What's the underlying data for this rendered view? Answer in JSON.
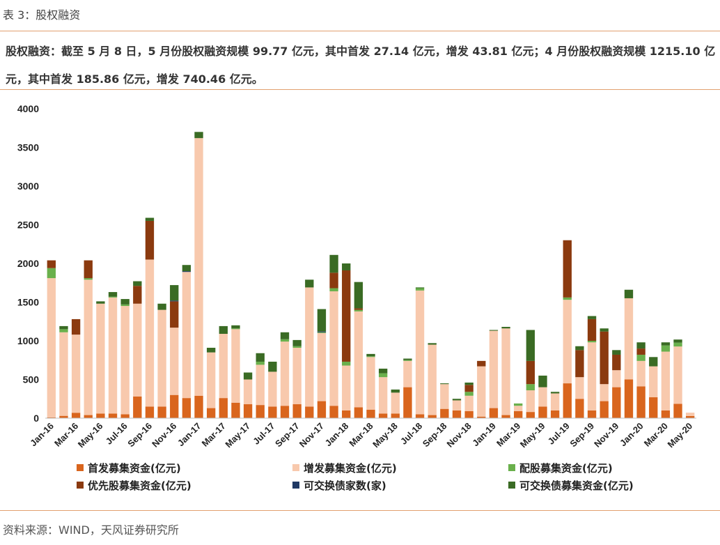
{
  "header": {
    "caption": "表 3：股权融资",
    "summary": "股权融资：截至 5 月 8 日，5 月份股权融资规模 99.77 亿元，其中首发 27.14 亿元，增发 43.81 亿元；4 月份股权融资规模 1215.10 亿元，其中首发 185.86 亿元，增发 740.46 亿元。"
  },
  "footer": {
    "source": "资料来源：WIND，天风证券研究所"
  },
  "chart_data": {
    "type": "bar",
    "stacked": true,
    "ylim": [
      0,
      4000
    ],
    "yticks": [
      "0",
      "500",
      "1000",
      "1500",
      "2000",
      "2500",
      "3000",
      "3500",
      "4000"
    ],
    "categories": [
      "Jan-16",
      "Feb-16",
      "Mar-16",
      "Apr-16",
      "May-16",
      "Jun-16",
      "Jul-16",
      "Aug-16",
      "Sep-16",
      "Oct-16",
      "Nov-16",
      "Dec-16",
      "Jan-17",
      "Feb-17",
      "Mar-17",
      "Apr-17",
      "May-17",
      "Jun-17",
      "Jul-17",
      "Aug-17",
      "Sep-17",
      "Oct-17",
      "Nov-17",
      "Dec-17",
      "Jan-18",
      "Feb-18",
      "Mar-18",
      "Apr-18",
      "May-18",
      "Jun-18",
      "Jul-18",
      "Aug-18",
      "Sep-18",
      "Oct-18",
      "Nov-18",
      "Dec-18",
      "Jan-19",
      "Feb-19",
      "Mar-19",
      "Apr-19",
      "May-19",
      "Jun-19",
      "Jul-19",
      "Aug-19",
      "Sep-19",
      "Oct-19",
      "Nov-19",
      "Dec-19",
      "Jan-20",
      "Feb-20",
      "Mar-20",
      "Apr-20",
      "May-20"
    ],
    "tick_labels": [
      "Jan-16",
      "Mar-16",
      "May-16",
      "Jul-16",
      "Sep-16",
      "Nov-16",
      "Jan-17",
      "Mar-17",
      "May-17",
      "Jul-17",
      "Sep-17",
      "Nov-17",
      "Jan-18",
      "Mar-18",
      "May-18",
      "Jul-18",
      "Sep-18",
      "Nov-18",
      "Jan-19",
      "Mar-19",
      "May-19",
      "Jul-19",
      "Sep-19",
      "Nov-19",
      "Jan-20",
      "Mar-20",
      "May-20"
    ],
    "series": [
      {
        "name": "首发募集资金(亿元)",
        "color": "#d9651d",
        "values": [
          10,
          30,
          70,
          40,
          60,
          60,
          50,
          280,
          150,
          150,
          300,
          260,
          290,
          130,
          260,
          200,
          180,
          170,
          150,
          160,
          180,
          150,
          220,
          160,
          100,
          140,
          110,
          60,
          60,
          400,
          50,
          40,
          120,
          100,
          90,
          20,
          130,
          40,
          90,
          80,
          150,
          100,
          450,
          250,
          100,
          220,
          400,
          500,
          410,
          270,
          100,
          185.86,
          27.14
        ]
      },
      {
        "name": "增发募集资金(亿元)",
        "color": "#f8c9ad",
        "values": [
          1800,
          1080,
          1010,
          1750,
          1420,
          1500,
          1400,
          1200,
          1900,
          1250,
          870,
          1630,
          3330,
          720,
          830,
          950,
          320,
          520,
          450,
          830,
          730,
          1540,
          880,
          1480,
          580,
          1240,
          680,
          470,
          270,
          340,
          1600,
          910,
          320,
          130,
          200,
          650,
          1000,
          1120,
          70,
          280,
          250,
          220,
          1080,
          280,
          880,
          220,
          220,
          1050,
          330,
          400,
          760,
          740.46,
          43.81
        ]
      },
      {
        "name": "配股募集资金(亿元)",
        "color": "#6ab04c",
        "values": [
          130,
          40,
          0,
          20,
          0,
          10,
          20,
          0,
          0,
          0,
          0,
          0,
          0,
          0,
          0,
          10,
          0,
          40,
          0,
          30,
          20,
          0,
          10,
          40,
          50,
          20,
          10,
          50,
          0,
          10,
          30,
          0,
          0,
          0,
          50,
          0,
          0,
          0,
          30,
          80,
          0,
          0,
          30,
          0,
          20,
          0,
          0,
          0,
          80,
          0,
          80,
          50,
          0
        ]
      },
      {
        "name": "优先股募集资金(亿元)",
        "color": "#8b3a0f",
        "values": [
          100,
          0,
          200,
          230,
          0,
          0,
          0,
          230,
          500,
          0,
          340,
          0,
          0,
          0,
          0,
          0,
          0,
          0,
          0,
          0,
          0,
          0,
          0,
          200,
          1180,
          20,
          0,
          0,
          0,
          0,
          0,
          0,
          0,
          0,
          90,
          70,
          0,
          0,
          0,
          300,
          0,
          0,
          740,
          350,
          280,
          680,
          200,
          0,
          80,
          0,
          0,
          0,
          0
        ]
      },
      {
        "name": "可交换债家数(家)",
        "color": "#1f3864",
        "values": [
          0,
          0,
          0,
          0,
          0,
          0,
          0,
          0,
          0,
          0,
          10,
          10,
          0,
          0,
          0,
          0,
          0,
          0,
          0,
          0,
          0,
          0,
          10,
          0,
          0,
          0,
          0,
          0,
          0,
          0,
          0,
          0,
          0,
          0,
          0,
          0,
          0,
          0,
          0,
          0,
          0,
          0,
          0,
          0,
          0,
          0,
          0,
          0,
          0,
          0,
          0,
          0,
          0
        ]
      },
      {
        "name": "可交换债募集资金(亿元)",
        "color": "#3a6b24",
        "values": [
          0,
          40,
          0,
          0,
          30,
          60,
          70,
          60,
          40,
          80,
          200,
          80,
          80,
          60,
          100,
          40,
          90,
          110,
          130,
          90,
          80,
          100,
          290,
          230,
          90,
          340,
          30,
          60,
          40,
          20,
          10,
          20,
          10,
          20,
          30,
          0,
          10,
          20,
          0,
          400,
          150,
          20,
          0,
          50,
          40,
          40,
          60,
          110,
          80,
          120,
          40,
          40,
          0
        ]
      }
    ]
  }
}
